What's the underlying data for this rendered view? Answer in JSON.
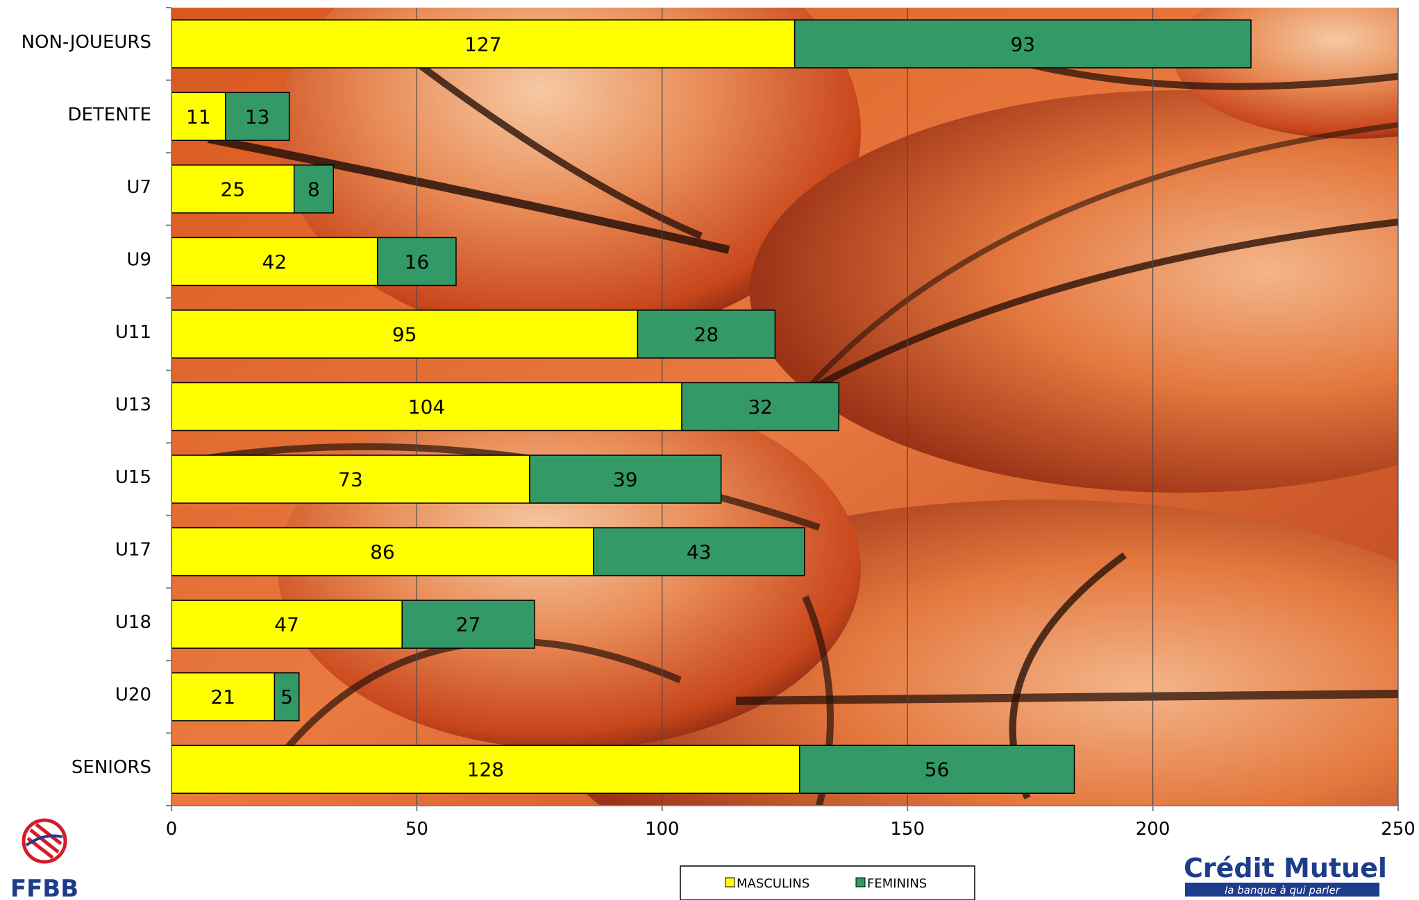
{
  "chart_data": {
    "type": "bar",
    "orientation": "horizontal",
    "stacked": true,
    "categories": [
      "NON-JOUEURS",
      "DETENTE",
      "U7",
      "U9",
      "U11",
      "U13",
      "U15",
      "U17",
      "U18",
      "U20",
      "SENIORS"
    ],
    "series": [
      {
        "name": "MASCULINS",
        "color": "#FFFF00",
        "values": [
          127,
          11,
          25,
          42,
          95,
          104,
          73,
          86,
          47,
          21,
          128
        ]
      },
      {
        "name": "FEMININS",
        "color": "#339966",
        "values": [
          93,
          13,
          8,
          16,
          28,
          32,
          39,
          43,
          27,
          5,
          56
        ]
      }
    ],
    "xticks": [
      "0",
      "50",
      "100",
      "150",
      "200",
      "250"
    ],
    "xlim": [
      0,
      250
    ],
    "grid": true,
    "legend": "bottom-center",
    "background": "basketball photo"
  },
  "logos": {
    "left_text": "FFBB",
    "right_text": "Crédit Mutuel",
    "right_tagline": "la banque à qui parler"
  }
}
